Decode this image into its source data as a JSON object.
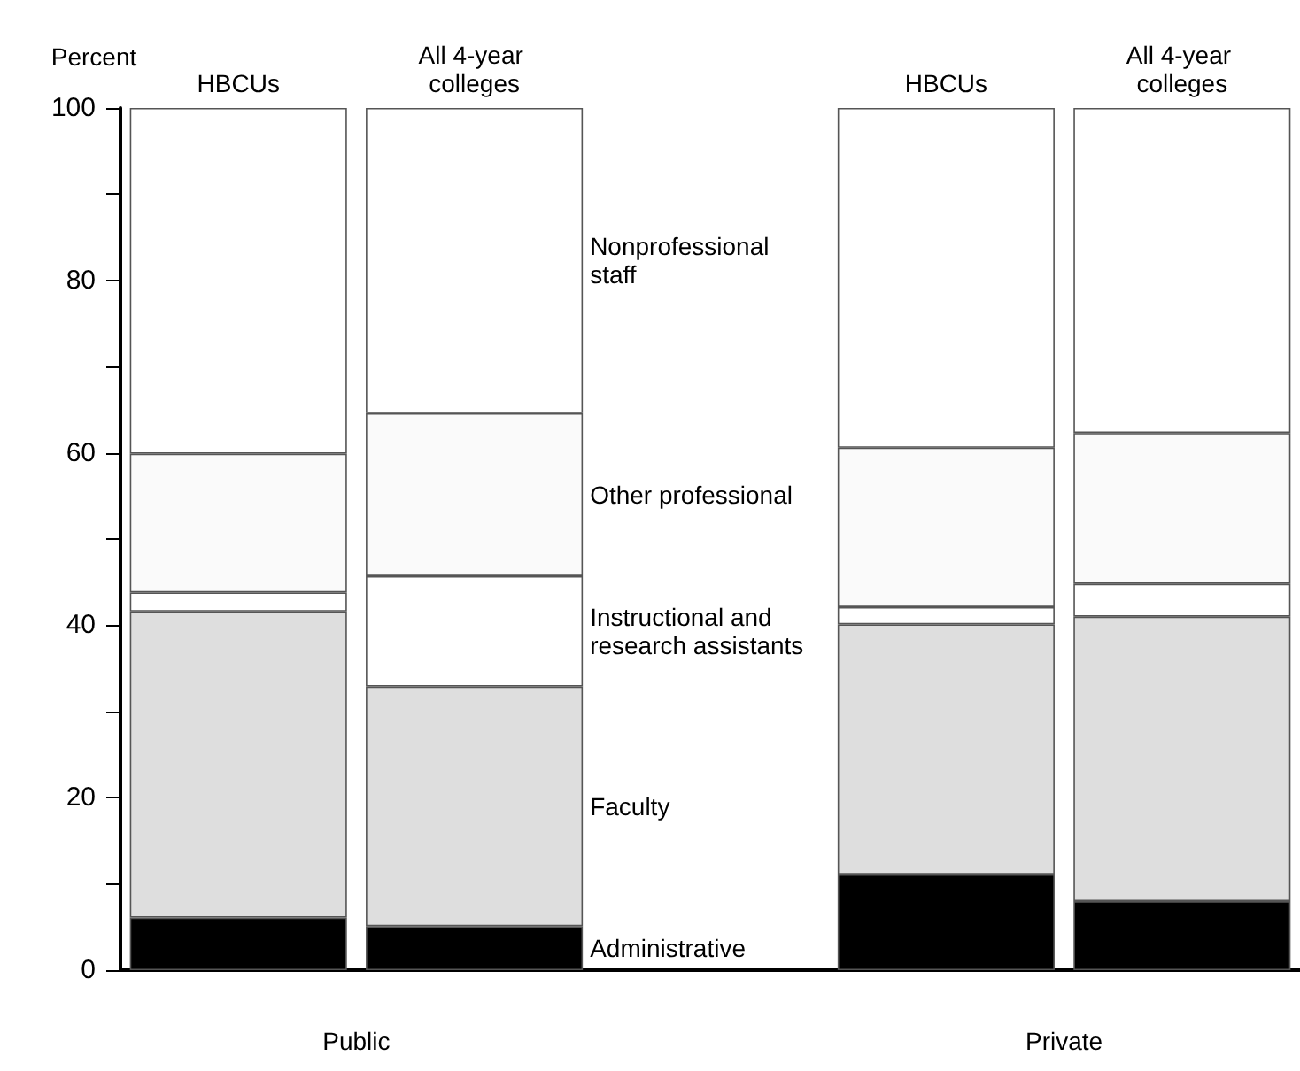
{
  "chart_data": {
    "type": "bar",
    "stacked": true,
    "ylabel": "Percent",
    "categories": [
      "HBCUs",
      "All 4-year colleges",
      null,
      "HBCUs",
      "All 4-year colleges"
    ],
    "series": [
      {
        "name": "Administrative",
        "color": "#000000",
        "values": [
          6.1,
          5.1,
          null,
          11.1,
          8.0
        ]
      },
      {
        "name": "Faculty",
        "color": "#dedede",
        "values": [
          35.5,
          27.8,
          null,
          29.0,
          33.0
        ]
      },
      {
        "name": "Instructional and research assistants",
        "color": "#ffffff",
        "values": [
          2.2,
          12.8,
          null,
          2.0,
          3.8
        ]
      },
      {
        "name": "Other professional",
        "color": "#fafafa",
        "values": [
          16.1,
          18.9,
          null,
          18.5,
          17.5
        ]
      },
      {
        "name": "Nonprofessional staff",
        "color": "#ffffff",
        "values": [
          40.1,
          35.4,
          null,
          39.4,
          37.7
        ]
      }
    ],
    "ylim": [
      0,
      100
    ],
    "yticks": [
      0,
      {
        "value": 10,
        "label": null
      },
      20,
      {
        "value": 30,
        "label": null
      },
      40,
      {
        "value": 50,
        "label": null
      },
      60,
      {
        "value": 70,
        "label": null
      },
      80,
      {
        "value": 90,
        "label": null
      },
      100
    ],
    "annotations": [
      "Public",
      "Private"
    ],
    "grid": false,
    "legend": false
  }
}
